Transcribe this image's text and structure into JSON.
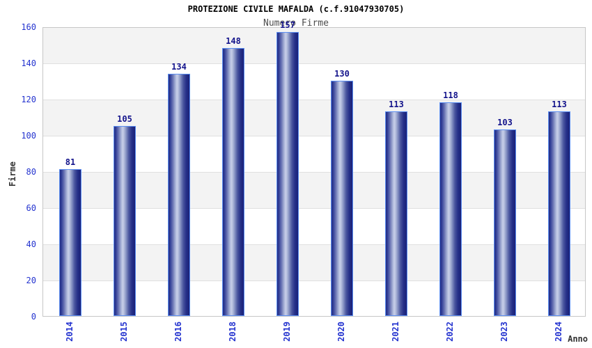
{
  "title": "PROTEZIONE CIVILE MAFALDA (c.f.91047930705)",
  "subtitle": "Numero Firme",
  "chart_data": {
    "type": "bar",
    "title": "PROTEZIONE CIVILE MAFALDA (c.f.91047930705)",
    "subtitle": "Numero Firme",
    "xlabel": "Anno",
    "ylabel": "Firme",
    "categories": [
      "2014",
      "2015",
      "2016",
      "2018",
      "2019",
      "2020",
      "2021",
      "2022",
      "2023",
      "2024"
    ],
    "values": [
      81,
      105,
      134,
      148,
      157,
      130,
      113,
      118,
      103,
      113
    ],
    "ylim": [
      0,
      160
    ],
    "yticks": [
      0,
      20,
      40,
      60,
      80,
      100,
      120,
      140,
      160
    ],
    "grid": "horizontal-bands",
    "legend_position": "none",
    "colors": {
      "bar_dark": "#1b2583",
      "bar_highlight": "#c7cfe9",
      "bar_border": "#5c8ff2",
      "value_label": "#13138b",
      "tick_label": "#2433cf",
      "axis_title": "#333333",
      "band_gray": "#f3f3f3",
      "band_white": "#ffffff",
      "gridline": "#e0e0e0",
      "frame_border": "#c6c6c6",
      "title_color": "#000000",
      "subtitle_color": "#4d4d4d",
      "background": "#ffffff"
    }
  }
}
